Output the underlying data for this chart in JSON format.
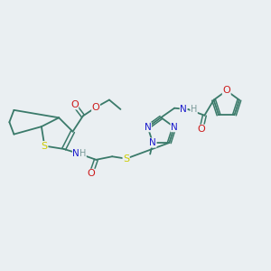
{
  "background_color": "#eaeff2",
  "atom_colors": {
    "C": "#3a7a6a",
    "N": "#1a1acc",
    "O": "#cc1a1a",
    "S": "#cccc00",
    "H": "#7a9a9a"
  },
  "bond_color": "#3a7a6a",
  "figsize": [
    3.0,
    3.0
  ],
  "dpi": 100
}
